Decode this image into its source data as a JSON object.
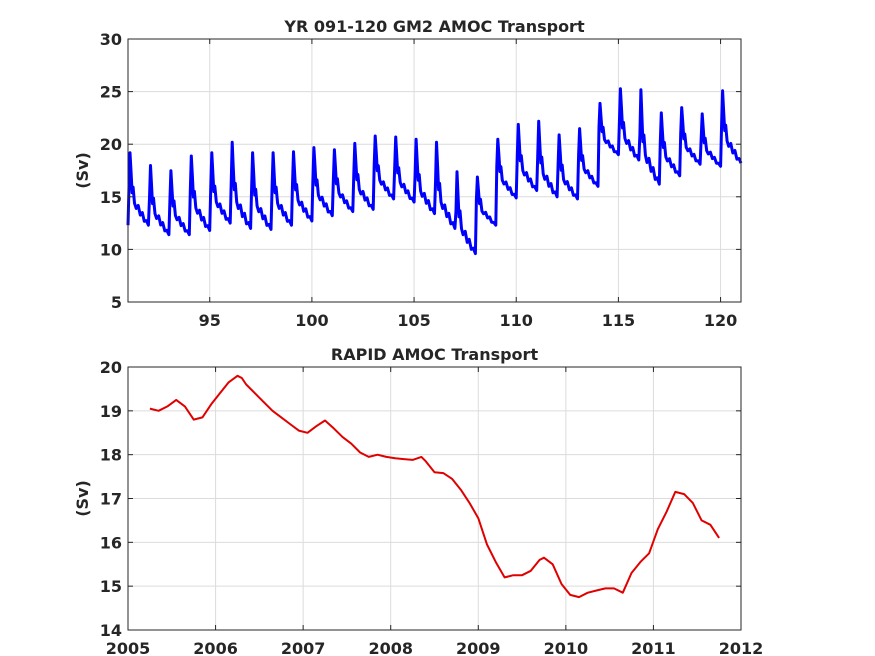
{
  "chart_data": [
    {
      "type": "line",
      "title": "YR 091-120 GM2 AMOC Transport",
      "ylabel": "(Sv)",
      "xlabel": "",
      "xlim": [
        91,
        121
      ],
      "ylim": [
        5,
        30
      ],
      "xticks": [
        95,
        100,
        105,
        110,
        115,
        120
      ],
      "yticks": [
        5,
        10,
        15,
        20,
        25,
        30
      ],
      "grid": true,
      "series": [
        {
          "color": "#0000ff",
          "annual_cycle_fraction": [
            0.0,
            0.05,
            0.1,
            0.15,
            0.2,
            0.25,
            0.32,
            0.4,
            0.5,
            0.6,
            0.7,
            0.8,
            0.9,
            1.0
          ],
          "annual_cycle_shape": [
            0.0,
            0.5,
            1.0,
            0.7,
            0.45,
            0.5,
            0.32,
            0.22,
            0.28,
            0.12,
            0.18,
            0.04,
            0.08,
            0.0
          ],
          "annual": [
            {
              "year": 91,
              "min": 12.3,
              "max": 19.3
            },
            {
              "year": 92,
              "min": 11.4,
              "max": 18.1
            },
            {
              "year": 93,
              "min": 11.4,
              "max": 17.6
            },
            {
              "year": 94,
              "min": 11.8,
              "max": 19.0
            },
            {
              "year": 95,
              "min": 12.5,
              "max": 19.3
            },
            {
              "year": 96,
              "min": 12.0,
              "max": 20.3
            },
            {
              "year": 97,
              "min": 11.9,
              "max": 19.3
            },
            {
              "year": 98,
              "min": 12.3,
              "max": 19.3
            },
            {
              "year": 99,
              "min": 12.7,
              "max": 19.4
            },
            {
              "year": 100,
              "min": 13.2,
              "max": 19.8
            },
            {
              "year": 101,
              "min": 13.6,
              "max": 19.6
            },
            {
              "year": 102,
              "min": 13.8,
              "max": 20.2
            },
            {
              "year": 103,
              "min": 14.8,
              "max": 20.9
            },
            {
              "year": 104,
              "min": 14.5,
              "max": 20.8
            },
            {
              "year": 105,
              "min": 13.4,
              "max": 20.6
            },
            {
              "year": 106,
              "min": 12.0,
              "max": 20.3
            },
            {
              "year": 107,
              "min": 9.6,
              "max": 17.5
            },
            {
              "year": 108,
              "min": 12.3,
              "max": 17.0
            },
            {
              "year": 109,
              "min": 14.9,
              "max": 20.6
            },
            {
              "year": 110,
              "min": 15.6,
              "max": 22.0
            },
            {
              "year": 111,
              "min": 15.0,
              "max": 22.3
            },
            {
              "year": 112,
              "min": 14.8,
              "max": 21.0
            },
            {
              "year": 113,
              "min": 16.0,
              "max": 21.6
            },
            {
              "year": 114,
              "min": 19.0,
              "max": 24.0
            },
            {
              "year": 115,
              "min": 18.5,
              "max": 25.4
            },
            {
              "year": 116,
              "min": 16.2,
              "max": 25.3
            },
            {
              "year": 117,
              "min": 17.0,
              "max": 23.1
            },
            {
              "year": 118,
              "min": 18.1,
              "max": 23.6
            },
            {
              "year": 119,
              "min": 17.9,
              "max": 23.0
            },
            {
              "year": 120,
              "min": 18.2,
              "max": 25.2
            }
          ]
        }
      ]
    },
    {
      "type": "line",
      "title": "RAPID AMOC Transport",
      "ylabel": "(Sv)",
      "xlabel": "",
      "xlim": [
        2005,
        2012
      ],
      "ylim": [
        14,
        20
      ],
      "xticks": [
        2005,
        2006,
        2007,
        2008,
        2009,
        2010,
        2011,
        2012
      ],
      "yticks": [
        14,
        15,
        16,
        17,
        18,
        19,
        20
      ],
      "grid": true,
      "series": [
        {
          "color": "#e00000",
          "x": [
            2005.25,
            2005.35,
            2005.45,
            2005.55,
            2005.65,
            2005.75,
            2005.85,
            2005.95,
            2006.05,
            2006.15,
            2006.25,
            2006.3,
            2006.35,
            2006.45,
            2006.55,
            2006.65,
            2006.75,
            2006.85,
            2006.95,
            2007.05,
            2007.15,
            2007.25,
            2007.35,
            2007.45,
            2007.55,
            2007.65,
            2007.75,
            2007.85,
            2007.95,
            2008.05,
            2008.15,
            2008.25,
            2008.35,
            2008.4,
            2008.5,
            2008.6,
            2008.7,
            2008.8,
            2008.9,
            2009.0,
            2009.1,
            2009.2,
            2009.3,
            2009.4,
            2009.5,
            2009.6,
            2009.7,
            2009.75,
            2009.85,
            2009.95,
            2010.05,
            2010.15,
            2010.25,
            2010.35,
            2010.45,
            2010.55,
            2010.65,
            2010.75,
            2010.85,
            2010.95,
            2011.05,
            2011.15,
            2011.25,
            2011.35,
            2011.45,
            2011.55,
            2011.65,
            2011.75
          ],
          "y": [
            19.05,
            19.0,
            19.1,
            19.25,
            19.1,
            18.8,
            18.85,
            19.15,
            19.4,
            19.65,
            19.8,
            19.75,
            19.6,
            19.4,
            19.2,
            19.0,
            18.85,
            18.7,
            18.55,
            18.5,
            18.65,
            18.78,
            18.6,
            18.4,
            18.25,
            18.05,
            17.95,
            18.0,
            17.95,
            17.92,
            17.9,
            17.88,
            17.95,
            17.85,
            17.6,
            17.58,
            17.45,
            17.2,
            16.9,
            16.55,
            15.95,
            15.55,
            15.2,
            15.25,
            15.25,
            15.35,
            15.6,
            15.65,
            15.5,
            15.05,
            14.8,
            14.75,
            14.85,
            14.9,
            14.95,
            14.95,
            14.85,
            15.3,
            15.55,
            15.75,
            16.3,
            16.7,
            17.15,
            17.1,
            16.9,
            16.5,
            16.4,
            16.1
          ]
        }
      ]
    }
  ]
}
